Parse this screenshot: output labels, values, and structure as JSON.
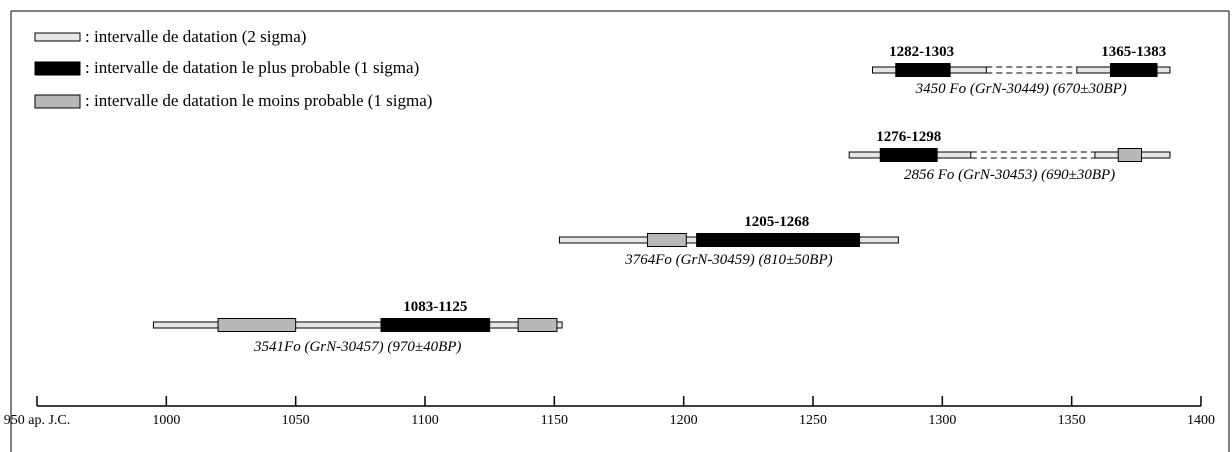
{
  "chart_data": {
    "type": "range-timeline",
    "legend": {
      "placement": "top-left",
      "items": [
        {
          "key": "two_sigma",
          "label": ": intervalle de datation (2 sigma)",
          "color": "#e6e6e6"
        },
        {
          "key": "most_probable",
          "label": ": intervalle de datation le plus probable (1 sigma)",
          "color": "#000000"
        },
        {
          "key": "less_probable",
          "label": ": intervalle de datation le moins probable (1 sigma)",
          "color": "#b8b8b8"
        }
      ]
    },
    "axis": {
      "min": 950,
      "max": 1400,
      "ticks": [
        {
          "value": 950,
          "label": "950 ap. J.C."
        },
        {
          "value": 1000,
          "label": "1000"
        },
        {
          "value": 1050,
          "label": "1050"
        },
        {
          "value": 1100,
          "label": "1100"
        },
        {
          "value": 1150,
          "label": "1150"
        },
        {
          "value": 1200,
          "label": "1200"
        },
        {
          "value": 1250,
          "label": "1250"
        },
        {
          "value": 1300,
          "label": "1300"
        },
        {
          "value": 1350,
          "label": "1350"
        },
        {
          "value": 1400,
          "label": "1400"
        }
      ]
    },
    "samples": [
      {
        "label": "3450 Fo (GrN-30449) (670±30BP)",
        "two_sigma": [
          [
            1273,
            1317
          ],
          [
            1352,
            1388
          ]
        ],
        "two_sigma_gaps": [
          [
            1317,
            1352
          ]
        ],
        "most_probable": [
          [
            1282,
            1303
          ],
          [
            1365,
            1383
          ]
        ],
        "less_probable": [],
        "range_labels": [
          {
            "text": "1282-1303",
            "center": 1292
          },
          {
            "text": "1365-1383",
            "center": 1374
          }
        ]
      },
      {
        "label": "2856 Fo (GrN-30453) (690±30BP)",
        "two_sigma": [
          [
            1264,
            1311
          ],
          [
            1359,
            1388
          ]
        ],
        "two_sigma_gaps": [
          [
            1311,
            1359
          ]
        ],
        "most_probable": [
          [
            1276,
            1298
          ]
        ],
        "less_probable": [
          [
            1368,
            1377
          ]
        ],
        "range_labels": [
          {
            "text": "1276-1298",
            "center": 1287
          }
        ]
      },
      {
        "label": "3764Fo (GrN-30459) (810±50BP)",
        "two_sigma": [
          [
            1152,
            1283
          ]
        ],
        "two_sigma_gaps": [],
        "most_probable": [
          [
            1205,
            1268
          ]
        ],
        "less_probable": [
          [
            1186,
            1201
          ]
        ],
        "range_labels": [
          {
            "text": "1205-1268",
            "center": 1236
          }
        ]
      },
      {
        "label": "3541Fo (GrN-30457) (970±40BP)",
        "two_sigma": [
          [
            995,
            1153
          ]
        ],
        "two_sigma_gaps": [],
        "most_probable": [
          [
            1083,
            1125
          ]
        ],
        "less_probable": [
          [
            1020,
            1050
          ],
          [
            1136,
            1151
          ]
        ],
        "range_labels": [
          {
            "text": "1083-1125",
            "center": 1104
          }
        ]
      }
    ]
  }
}
